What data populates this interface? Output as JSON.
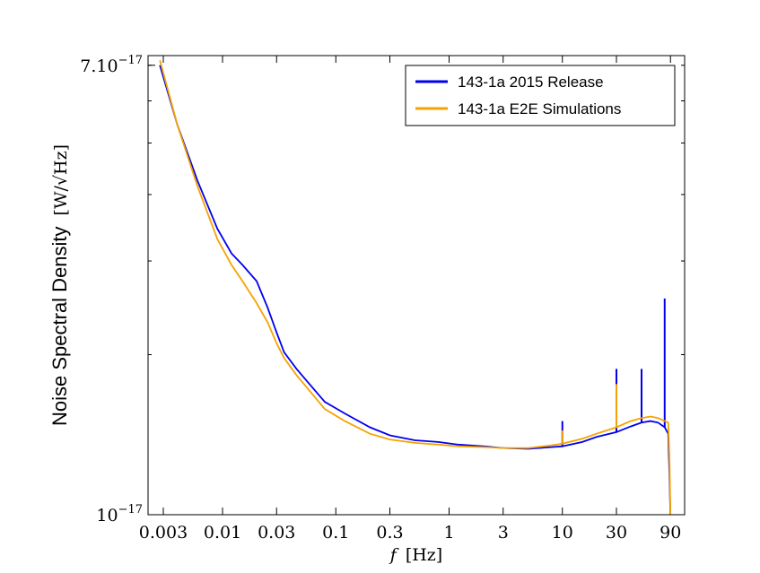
{
  "chart_data": {
    "type": "line",
    "scale": "log-log",
    "xlabel_symbol": "f",
    "xlabel_unit": "[Hz]",
    "ylabel_text": "Noise Spectral Density",
    "ylabel_unit": "[W/√Hz]",
    "xlim": [
      0.0022,
      120
    ],
    "ylim": [
      1e-17,
      7.3e-17
    ],
    "x_ticks": [
      {
        "value": 0.003,
        "label": "0.003"
      },
      {
        "value": 0.01,
        "label": "0.01"
      },
      {
        "value": 0.03,
        "label": "0.03"
      },
      {
        "value": 0.1,
        "label": "0.1"
      },
      {
        "value": 0.3,
        "label": "0.3"
      },
      {
        "value": 1,
        "label": "1"
      },
      {
        "value": 3,
        "label": "3"
      },
      {
        "value": 10,
        "label": "10"
      },
      {
        "value": 30,
        "label": "30"
      },
      {
        "value": 90,
        "label": "90"
      }
    ],
    "y_ticks": [
      {
        "value": 7e-17,
        "label_base": "7.10",
        "label_exp": "−17"
      },
      {
        "value": 1e-17,
        "label_base": "10",
        "label_exp": "−17"
      }
    ],
    "legend_position": "top-right",
    "series": [
      {
        "name": "143-1a 2015 Release",
        "color": "#0000ee",
        "x": [
          0.0028,
          0.004,
          0.006,
          0.009,
          0.012,
          0.015,
          0.02,
          0.025,
          0.03,
          0.035,
          0.045,
          0.06,
          0.08,
          0.12,
          0.2,
          0.3,
          0.5,
          0.8,
          1.2,
          2,
          3,
          5,
          8,
          10,
          15,
          20,
          30,
          40,
          50,
          60,
          70,
          80,
          86,
          88,
          90
        ],
        "y": [
          7e-17,
          5.4e-17,
          4.25e-17,
          3.45e-17,
          3.1e-17,
          2.95e-17,
          2.75e-17,
          2.45e-17,
          2.2e-17,
          2.02e-17,
          1.88e-17,
          1.75e-17,
          1.63e-17,
          1.55e-17,
          1.46e-17,
          1.41e-17,
          1.38e-17,
          1.37e-17,
          1.355e-17,
          1.345e-17,
          1.335e-17,
          1.33e-17,
          1.34e-17,
          1.345e-17,
          1.37e-17,
          1.4e-17,
          1.43e-17,
          1.465e-17,
          1.49e-17,
          1.5e-17,
          1.49e-17,
          1.46e-17,
          1.42e-17,
          1.2e-17,
          9.9e-18
        ],
        "spikes": [
          {
            "x": 10,
            "y": 1.5e-17
          },
          {
            "x": 30,
            "y": 1.88e-17
          },
          {
            "x": 50,
            "y": 1.88e-17
          },
          {
            "x": 80,
            "y": 2.55e-17
          }
        ]
      },
      {
        "name": "143-1a E2E Simulations",
        "color": "#f5a300",
        "x": [
          0.0028,
          0.004,
          0.006,
          0.009,
          0.012,
          0.015,
          0.02,
          0.025,
          0.03,
          0.035,
          0.045,
          0.06,
          0.08,
          0.12,
          0.2,
          0.3,
          0.5,
          0.8,
          1.2,
          2,
          3,
          5,
          8,
          10,
          15,
          20,
          30,
          40,
          50,
          60,
          70,
          80,
          86,
          88,
          90
        ],
        "y": [
          7.15e-17,
          5.4e-17,
          4.15e-17,
          3.3e-17,
          2.95e-17,
          2.75e-17,
          2.5e-17,
          2.3e-17,
          2.1e-17,
          1.97e-17,
          1.83e-17,
          1.7e-17,
          1.58e-17,
          1.5e-17,
          1.42e-17,
          1.385e-17,
          1.365e-17,
          1.355e-17,
          1.345e-17,
          1.34e-17,
          1.335e-17,
          1.335e-17,
          1.35e-17,
          1.36e-17,
          1.39e-17,
          1.42e-17,
          1.46e-17,
          1.5e-17,
          1.52e-17,
          1.53e-17,
          1.52e-17,
          1.5e-17,
          1.49e-17,
          1.3e-17,
          1e-17
        ],
        "spikes": [
          {
            "x": 10,
            "y": 1.44e-17
          },
          {
            "x": 30,
            "y": 1.76e-17
          }
        ]
      }
    ]
  }
}
